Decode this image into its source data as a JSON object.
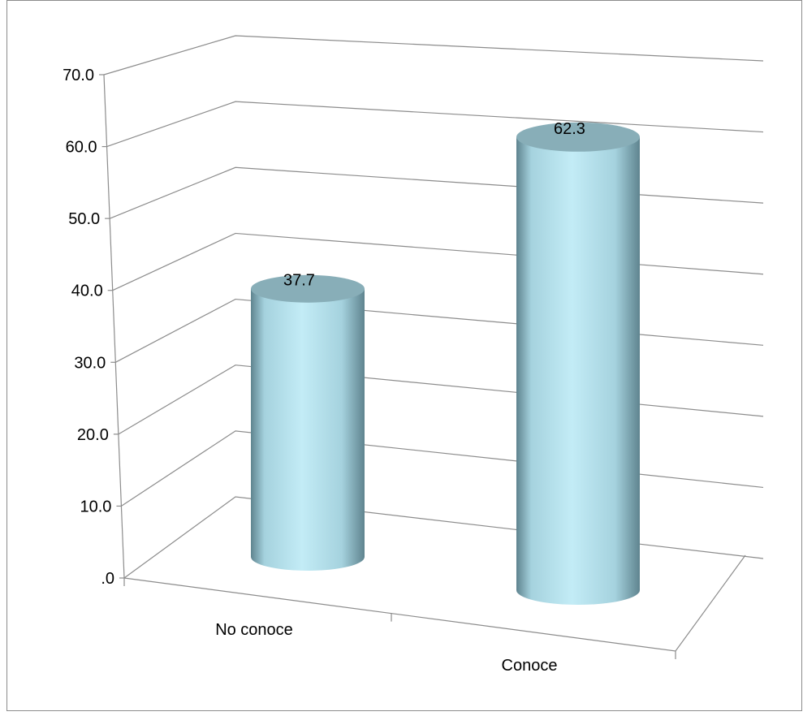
{
  "chart_data": {
    "type": "bar",
    "style": "3d-cylinder",
    "categories": [
      "No conoce",
      "Conoce"
    ],
    "values": [
      37.7,
      62.3
    ],
    "data_labels": [
      "37.7",
      "62.3"
    ],
    "ylim": [
      0,
      70
    ],
    "yticks": [
      0,
      10,
      20,
      30,
      40,
      50,
      60,
      70
    ],
    "ytick_labels": [
      ".0",
      "10.0",
      "20.0",
      "30.0",
      "40.0",
      "50.0",
      "60.0",
      "70.0"
    ],
    "grid": true,
    "legend": "none",
    "title": "",
    "xlabel": "",
    "ylabel": "",
    "colors": {
      "bar_light": "#c3ecf6",
      "bar_mid": "#a5d2de",
      "bar_dark": "#5f848f",
      "bar_top": "#88aeb8",
      "grid": "#8c8c8c",
      "frame": "#7f7f7f"
    }
  }
}
